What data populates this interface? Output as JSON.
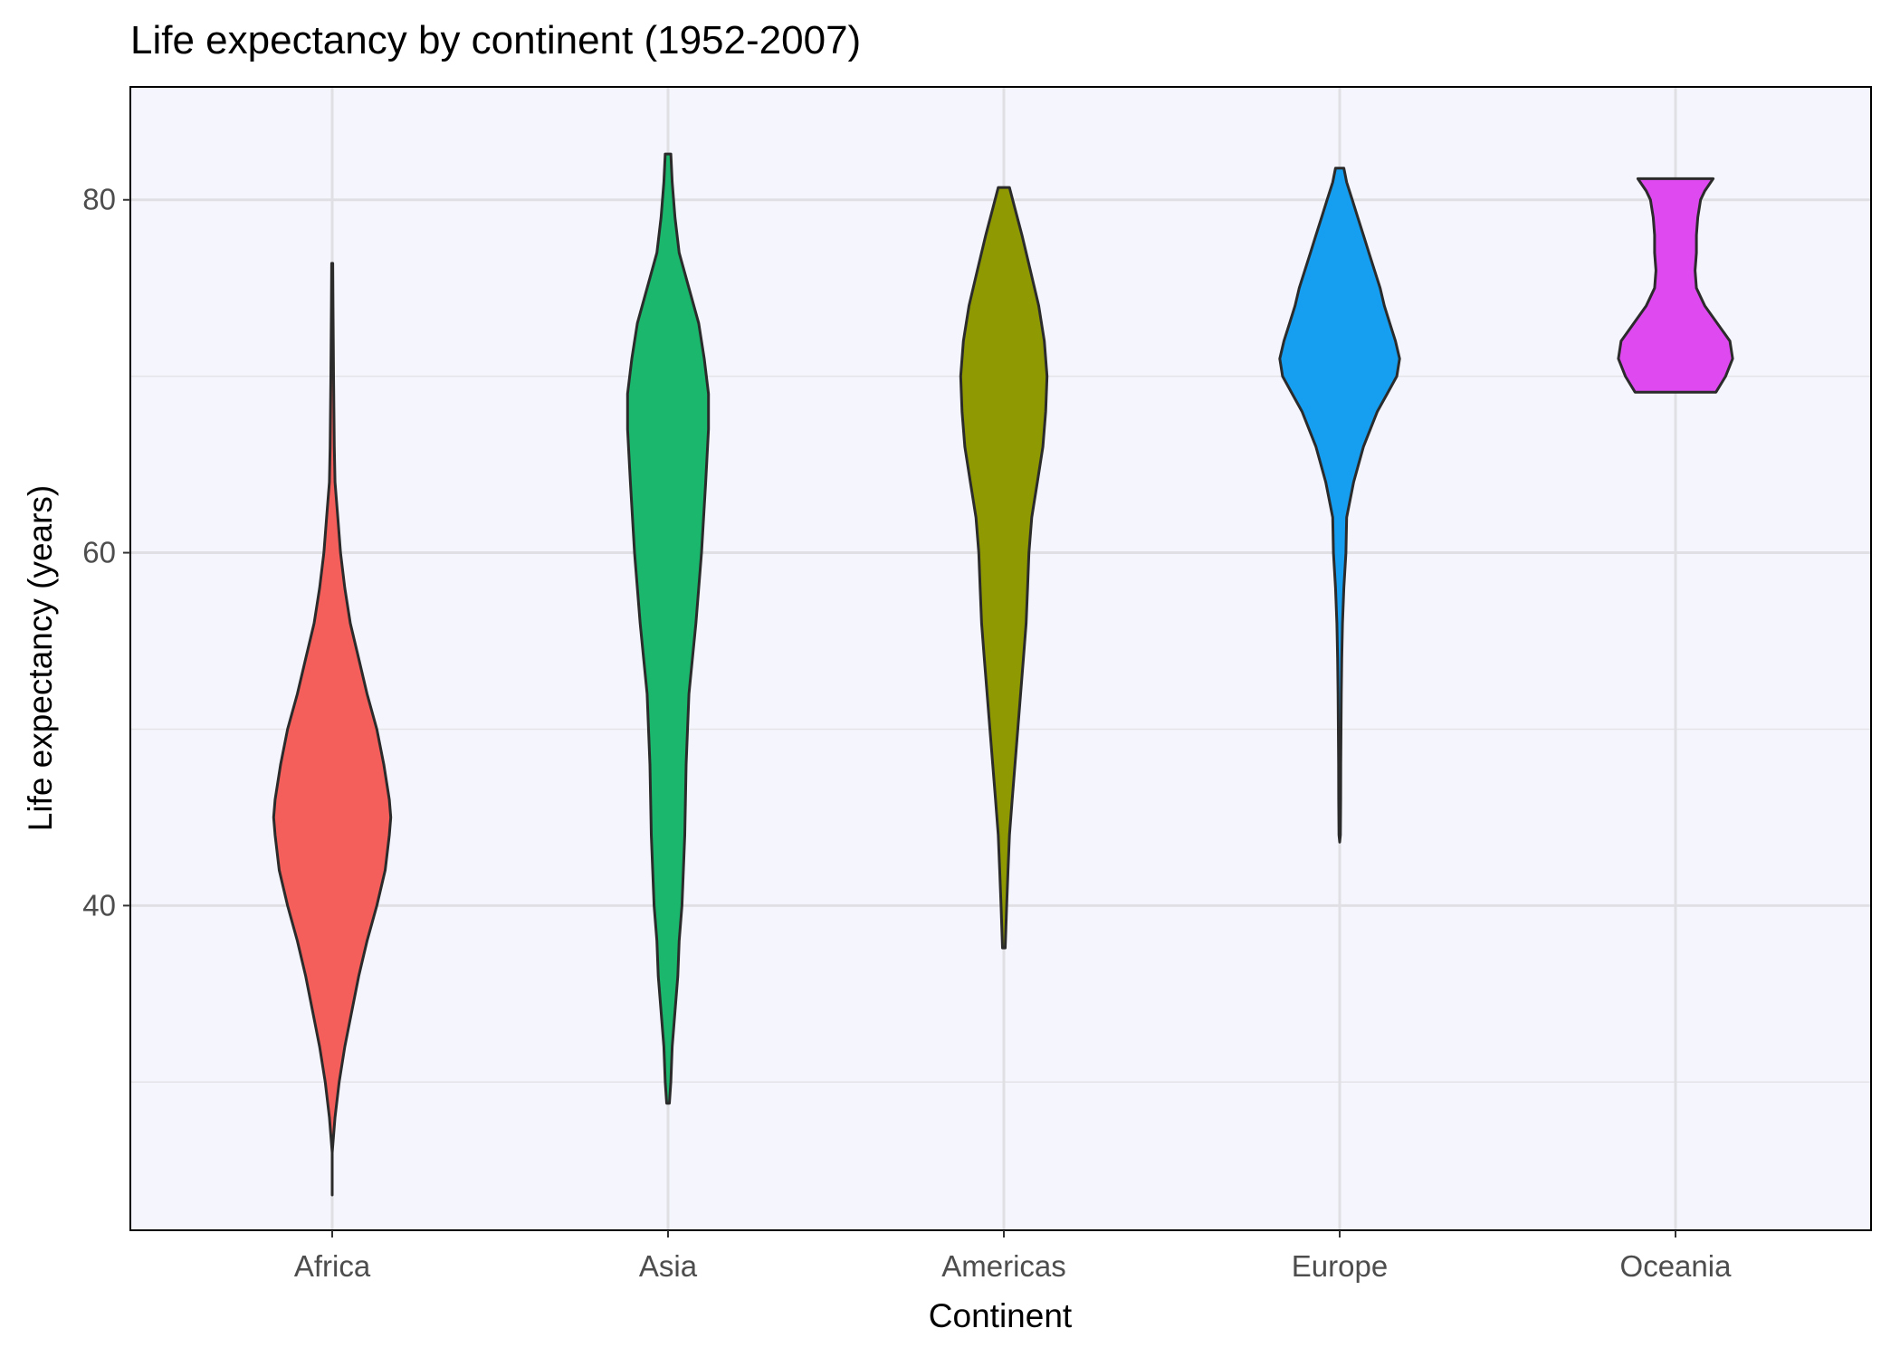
{
  "chart_data": {
    "type": "violin",
    "title": "Life expectancy by continent (1952-2007)",
    "xlabel": "Continent",
    "ylabel": "Life expectancy (years)",
    "categories": [
      "Africa",
      "Asia",
      "Americas",
      "Europe",
      "Oceania"
    ],
    "ylim": [
      21.6,
      86.4
    ],
    "yticks": [
      40,
      60,
      80
    ],
    "y_minor_ticks": [
      30,
      50,
      70
    ],
    "grid": true,
    "legend": "none",
    "series": [
      {
        "category": "Africa",
        "color": "#F45F5B",
        "profile": [
          [
            23.6,
            0.0
          ],
          [
            26,
            0.0
          ],
          [
            28,
            0.02
          ],
          [
            30,
            0.05
          ],
          [
            32,
            0.09
          ],
          [
            34,
            0.14
          ],
          [
            36,
            0.19
          ],
          [
            38,
            0.25
          ],
          [
            40,
            0.32
          ],
          [
            42,
            0.38
          ],
          [
            44,
            0.41
          ],
          [
            45,
            0.42
          ],
          [
            46,
            0.41
          ],
          [
            48,
            0.37
          ],
          [
            50,
            0.32
          ],
          [
            52,
            0.25
          ],
          [
            54,
            0.19
          ],
          [
            56,
            0.13
          ],
          [
            58,
            0.09
          ],
          [
            60,
            0.06
          ],
          [
            62,
            0.04
          ],
          [
            64,
            0.02
          ],
          [
            66,
            0.015
          ],
          [
            70,
            0.01
          ],
          [
            72,
            0.008
          ],
          [
            74,
            0.006
          ],
          [
            76.4,
            0.004
          ]
        ]
      },
      {
        "category": "Asia",
        "color": "#1AB76C",
        "profile": [
          [
            28.8,
            0.01
          ],
          [
            30,
            0.02
          ],
          [
            32,
            0.03
          ],
          [
            34,
            0.05
          ],
          [
            36,
            0.07
          ],
          [
            38,
            0.08
          ],
          [
            40,
            0.1
          ],
          [
            44,
            0.12
          ],
          [
            48,
            0.13
          ],
          [
            52,
            0.15
          ],
          [
            56,
            0.2
          ],
          [
            60,
            0.24
          ],
          [
            64,
            0.27
          ],
          [
            67,
            0.29
          ],
          [
            69,
            0.29
          ],
          [
            71,
            0.26
          ],
          [
            73,
            0.22
          ],
          [
            75,
            0.15
          ],
          [
            77,
            0.08
          ],
          [
            79,
            0.05
          ],
          [
            81,
            0.03
          ],
          [
            82.6,
            0.02
          ]
        ]
      },
      {
        "category": "Americas",
        "color": "#8F9902",
        "profile": [
          [
            37.6,
            0.01
          ],
          [
            40,
            0.02
          ],
          [
            42,
            0.03
          ],
          [
            44,
            0.04
          ],
          [
            46,
            0.06
          ],
          [
            48,
            0.08
          ],
          [
            50,
            0.1
          ],
          [
            52,
            0.12
          ],
          [
            54,
            0.14
          ],
          [
            56,
            0.16
          ],
          [
            58,
            0.17
          ],
          [
            60,
            0.18
          ],
          [
            62,
            0.2
          ],
          [
            64,
            0.24
          ],
          [
            66,
            0.28
          ],
          [
            68,
            0.3
          ],
          [
            70,
            0.31
          ],
          [
            72,
            0.29
          ],
          [
            74,
            0.25
          ],
          [
            76,
            0.19
          ],
          [
            78,
            0.13
          ],
          [
            79.5,
            0.08
          ],
          [
            80.7,
            0.04
          ]
        ]
      },
      {
        "category": "Europe",
        "color": "#169EF0",
        "profile": [
          [
            43.6,
            0.0
          ],
          [
            44,
            0.005
          ],
          [
            46,
            0.007
          ],
          [
            48,
            0.008
          ],
          [
            50,
            0.01
          ],
          [
            52,
            0.012
          ],
          [
            54,
            0.015
          ],
          [
            56,
            0.02
          ],
          [
            58,
            0.03
          ],
          [
            60,
            0.045
          ],
          [
            62,
            0.05
          ],
          [
            64,
            0.1
          ],
          [
            66,
            0.17
          ],
          [
            68,
            0.27
          ],
          [
            69,
            0.34
          ],
          [
            70,
            0.41
          ],
          [
            71,
            0.43
          ],
          [
            72,
            0.4
          ],
          [
            73,
            0.36
          ],
          [
            74,
            0.32
          ],
          [
            75,
            0.29
          ],
          [
            76,
            0.25
          ],
          [
            77,
            0.21
          ],
          [
            78,
            0.17
          ],
          [
            79,
            0.13
          ],
          [
            80,
            0.09
          ],
          [
            81,
            0.05
          ],
          [
            81.8,
            0.03
          ]
        ]
      },
      {
        "category": "Oceania",
        "color": "#DE4AF0",
        "profile": [
          [
            69.1,
            0.29
          ],
          [
            70,
            0.36
          ],
          [
            71,
            0.41
          ],
          [
            72,
            0.39
          ],
          [
            73,
            0.3
          ],
          [
            74,
            0.21
          ],
          [
            75,
            0.15
          ],
          [
            76,
            0.14
          ],
          [
            77,
            0.15
          ],
          [
            78,
            0.15
          ],
          [
            79,
            0.16
          ],
          [
            80,
            0.18
          ],
          [
            80.5,
            0.21
          ],
          [
            81.2,
            0.27
          ]
        ]
      }
    ]
  }
}
